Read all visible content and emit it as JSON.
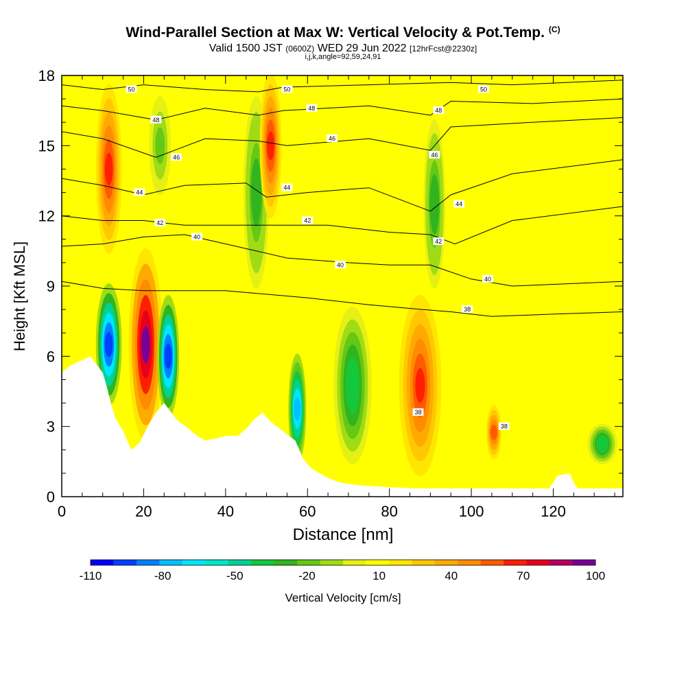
{
  "title": "Wind-Parallel Section at Max W: Vertical Velocity & Pot.Temp.",
  "copyright_mark": "(C)",
  "subtitle_main": "Valid 1500 JST",
  "subtitle_utc": "(0600Z)",
  "subtitle_date": "WED 29 Jun 2022",
  "subtitle_fcst": "[12hrFcst@2230z]",
  "subtitle_params": "i,j,k,angle=92,59,24,91",
  "chart_data": {
    "type": "heatmap",
    "xlabel": "Distance [nm]",
    "ylabel": "Height [Kft MSL]",
    "xlim": [
      0,
      137
    ],
    "ylim": [
      0,
      18
    ],
    "x_ticks": [
      0,
      20,
      40,
      60,
      80,
      100,
      120
    ],
    "y_ticks": [
      0,
      3,
      6,
      9,
      12,
      15,
      18
    ],
    "colorbar": {
      "label": "Vertical Velocity [cm/s]",
      "tick_labels": [
        "-110",
        "-80",
        "-50",
        "-20",
        "10",
        "40",
        "70",
        "100"
      ],
      "levels": [
        -110,
        -100,
        -90,
        -80,
        -70,
        -60,
        -50,
        -40,
        -30,
        -20,
        -10,
        0,
        10,
        20,
        30,
        40,
        50,
        60,
        70,
        80,
        90,
        100
      ],
      "colors": [
        "#0000ff",
        "#0040ff",
        "#0080ff",
        "#00c0ff",
        "#00e6ff",
        "#00e6c8",
        "#00d296",
        "#14c83c",
        "#32b41e",
        "#64c814",
        "#a0dc14",
        "#e6f014",
        "#ffff00",
        "#ffe600",
        "#ffc800",
        "#ffaa00",
        "#ff8c00",
        "#ff5a00",
        "#ff1e00",
        "#e6001e",
        "#b40064",
        "#780096"
      ]
    },
    "velocity_cells": [
      {
        "x": [
          9,
          14
        ],
        "y": [
          10.5,
          17.5
        ],
        "w": 70
      },
      {
        "x": [
          22,
          26
        ],
        "y": [
          13,
          17
        ],
        "w": -20
      },
      {
        "x": [
          45,
          50
        ],
        "y": [
          9,
          17
        ],
        "w": -30
      },
      {
        "x": [
          49,
          53
        ],
        "y": [
          12,
          18
        ],
        "w": 70
      },
      {
        "x": [
          89,
          93
        ],
        "y": [
          9,
          16
        ],
        "w": -30
      },
      {
        "x": [
          9,
          14
        ],
        "y": [
          4,
          9
        ],
        "w": -100
      },
      {
        "x": [
          17,
          24
        ],
        "y": [
          2.5,
          10.5
        ],
        "w": 100
      },
      {
        "x": [
          24,
          28
        ],
        "y": [
          3.5,
          8.5
        ],
        "w": -100
      },
      {
        "x": [
          56,
          59
        ],
        "y": [
          1.5,
          6
        ],
        "w": -80
      },
      {
        "x": [
          67,
          75
        ],
        "y": [
          1.5,
          8
        ],
        "w": -40
      },
      {
        "x": [
          83,
          92
        ],
        "y": [
          1,
          8.5
        ],
        "w": 70
      },
      {
        "x": [
          104,
          107
        ],
        "y": [
          1.5,
          4
        ],
        "w": 60
      },
      {
        "x": [
          129,
          135
        ],
        "y": [
          1.5,
          3
        ],
        "w": -40
      }
    ],
    "terrain_x": [
      0,
      2,
      7,
      10,
      11,
      12,
      13,
      15,
      17,
      19,
      21,
      23,
      25,
      28,
      31,
      33,
      35,
      38,
      40,
      43,
      45,
      47,
      49,
      51,
      54,
      57,
      59,
      61,
      63,
      65,
      68,
      72,
      80,
      88,
      96,
      104,
      112,
      119,
      120,
      121,
      124,
      125,
      126,
      137
    ],
    "terrain_y": [
      5.3,
      5.6,
      6.0,
      5.3,
      4.7,
      4.0,
      3.4,
      2.8,
      2.0,
      2.3,
      3.0,
      3.6,
      4.0,
      3.3,
      2.9,
      2.6,
      2.4,
      2.5,
      2.6,
      2.6,
      2.9,
      3.3,
      3.6,
      3.2,
      2.8,
      2.4,
      1.6,
      1.2,
      1.0,
      0.8,
      0.6,
      0.5,
      0.4,
      0.35,
      0.35,
      0.35,
      0.35,
      0.35,
      0.6,
      0.9,
      1.0,
      0.6,
      0.35,
      0.35
    ],
    "isentropes": [
      {
        "label": "50",
        "points": [
          [
            0,
            17.6
          ],
          [
            10,
            17.4
          ],
          [
            20,
            17.6
          ],
          [
            35,
            17.4
          ],
          [
            48,
            17.3
          ],
          [
            54,
            17.5
          ],
          [
            75,
            17.6
          ],
          [
            95,
            17.7
          ],
          [
            110,
            17.6
          ],
          [
            137,
            17.8
          ]
        ]
      },
      {
        "label": "48",
        "points": [
          [
            0,
            16.7
          ],
          [
            10,
            16.5
          ],
          [
            23,
            16.1
          ],
          [
            35,
            16.6
          ],
          [
            48,
            16.3
          ],
          [
            54,
            16.5
          ],
          [
            75,
            16.7
          ],
          [
            90,
            16.3
          ],
          [
            95,
            16.9
          ],
          [
            115,
            16.8
          ],
          [
            137,
            17.0
          ]
        ]
      },
      {
        "label": "46",
        "points": [
          [
            0,
            15.6
          ],
          [
            10,
            15.3
          ],
          [
            23,
            14.5
          ],
          [
            35,
            15.3
          ],
          [
            48,
            15.2
          ],
          [
            55,
            15.0
          ],
          [
            75,
            15.3
          ],
          [
            90,
            14.8
          ],
          [
            95,
            15.8
          ],
          [
            115,
            16.0
          ],
          [
            137,
            16.2
          ]
        ]
      },
      {
        "label": "44",
        "points": [
          [
            0,
            13.6
          ],
          [
            10,
            13.3
          ],
          [
            20,
            12.9
          ],
          [
            30,
            13.3
          ],
          [
            45,
            13.4
          ],
          [
            50,
            12.8
          ],
          [
            60,
            13.0
          ],
          [
            75,
            13.2
          ],
          [
            90,
            12.2
          ],
          [
            95,
            12.9
          ],
          [
            110,
            13.8
          ],
          [
            137,
            14.4
          ]
        ]
      },
      {
        "label": "42",
        "points": [
          [
            0,
            12.0
          ],
          [
            10,
            11.8
          ],
          [
            20,
            11.8
          ],
          [
            30,
            11.6
          ],
          [
            45,
            11.6
          ],
          [
            50,
            11.6
          ],
          [
            65,
            11.6
          ],
          [
            80,
            11.3
          ],
          [
            90,
            11.2
          ],
          [
            96,
            10.8
          ],
          [
            110,
            11.8
          ],
          [
            137,
            12.4
          ]
        ]
      },
      {
        "label": "40",
        "points": [
          [
            0,
            10.7
          ],
          [
            10,
            10.8
          ],
          [
            20,
            11.1
          ],
          [
            30,
            11.2
          ],
          [
            45,
            10.6
          ],
          [
            55,
            10.2
          ],
          [
            70,
            10.0
          ],
          [
            80,
            9.9
          ],
          [
            90,
            9.9
          ],
          [
            100,
            9.3
          ],
          [
            110,
            9.0
          ],
          [
            137,
            9.2
          ]
        ]
      },
      {
        "label": "38",
        "points": [
          [
            0,
            9.2
          ],
          [
            10,
            8.9
          ],
          [
            20,
            8.8
          ],
          [
            40,
            8.8
          ],
          [
            60,
            8.5
          ],
          [
            75,
            8.2
          ],
          [
            88,
            8.0
          ],
          [
            95,
            7.9
          ],
          [
            105,
            7.7
          ],
          [
            120,
            7.8
          ],
          [
            137,
            7.9
          ]
        ]
      }
    ],
    "isentrope_label_positions": [
      {
        "label": "50",
        "x": 17,
        "y": 17.4
      },
      {
        "label": "50",
        "x": 55,
        "y": 17.4
      },
      {
        "label": "50",
        "x": 103,
        "y": 17.4
      },
      {
        "label": "48",
        "x": 23,
        "y": 16.1
      },
      {
        "label": "48",
        "x": 61,
        "y": 16.6
      },
      {
        "label": "48",
        "x": 92,
        "y": 16.5
      },
      {
        "label": "46",
        "x": 28,
        "y": 14.5
      },
      {
        "label": "46",
        "x": 66,
        "y": 15.3
      },
      {
        "label": "46",
        "x": 91,
        "y": 14.6
      },
      {
        "label": "44",
        "x": 19,
        "y": 13.0
      },
      {
        "label": "44",
        "x": 55,
        "y": 13.2
      },
      {
        "label": "44",
        "x": 97,
        "y": 12.5
      },
      {
        "label": "42",
        "x": 24,
        "y": 11.7
      },
      {
        "label": "42",
        "x": 60,
        "y": 11.8
      },
      {
        "label": "42",
        "x": 92,
        "y": 10.9
      },
      {
        "label": "40",
        "x": 33,
        "y": 11.1
      },
      {
        "label": "40",
        "x": 68,
        "y": 9.9
      },
      {
        "label": "40",
        "x": 104,
        "y": 9.3
      },
      {
        "label": "38",
        "x": 99,
        "y": 8.0
      },
      {
        "label": "38",
        "x": 87,
        "y": 3.6
      },
      {
        "label": "38",
        "x": 108,
        "y": 3.0
      }
    ]
  }
}
